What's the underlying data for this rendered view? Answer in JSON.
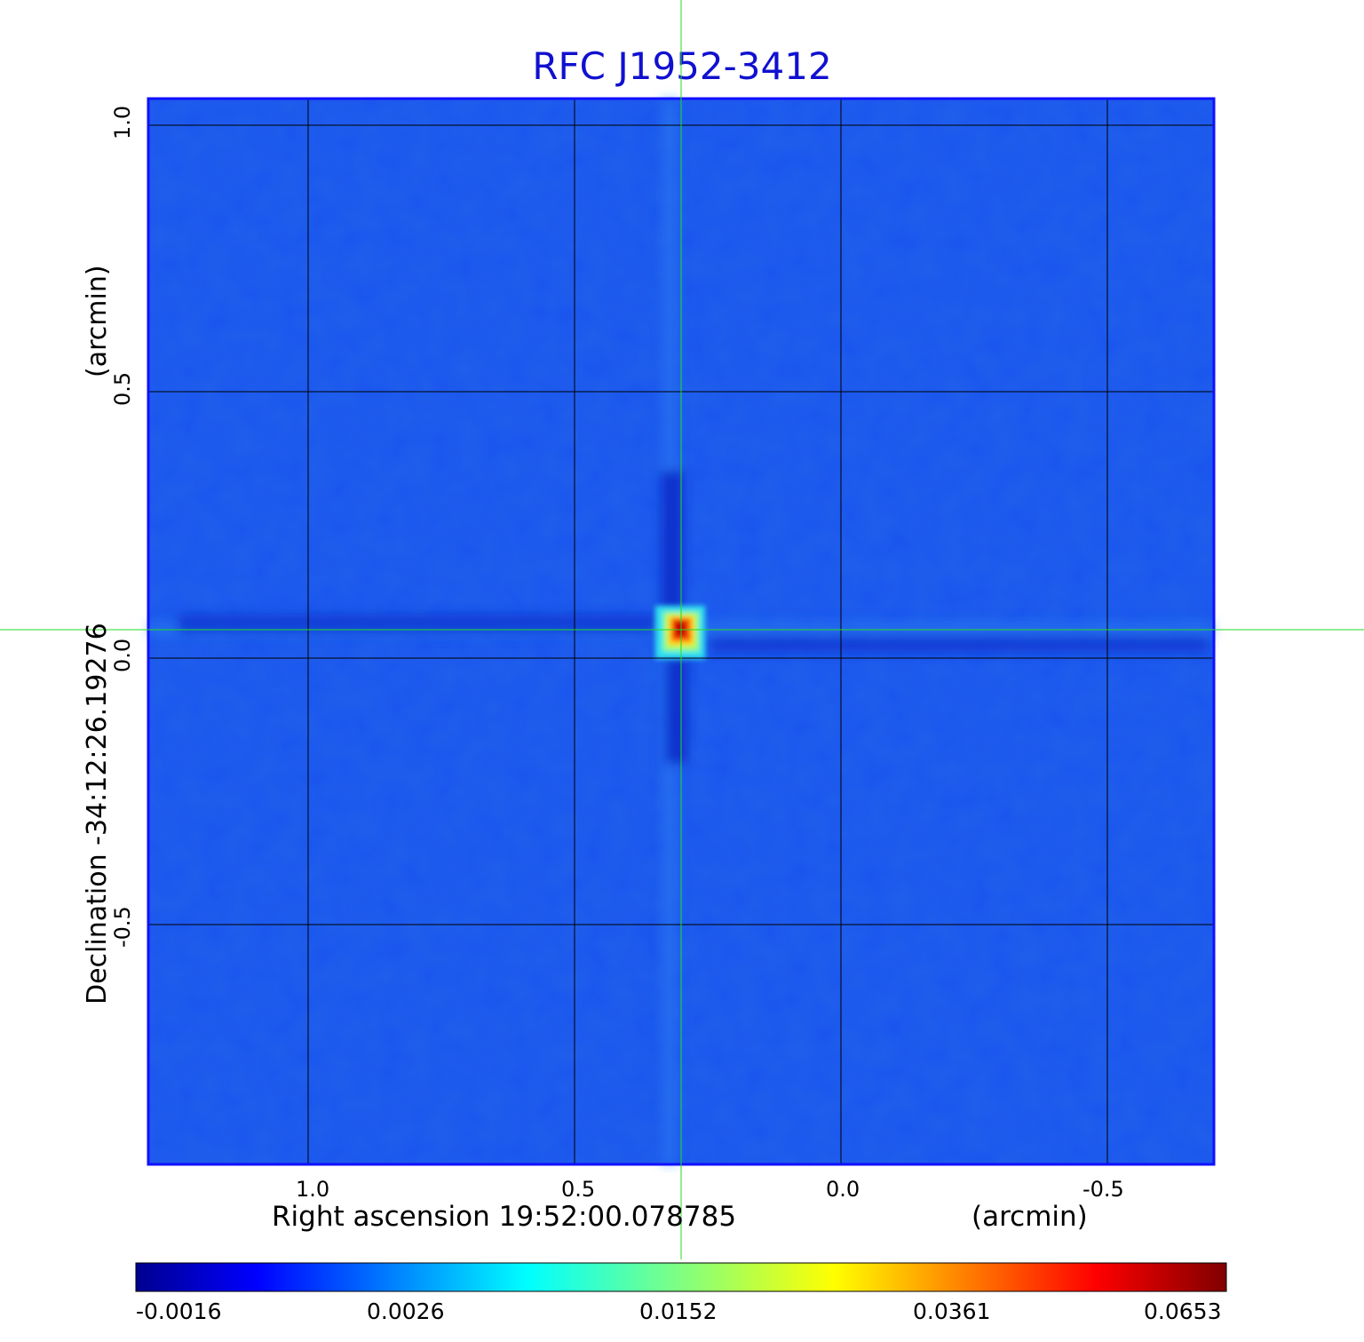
{
  "chart_data": {
    "type": "heatmap",
    "title": "RFC J1952-3412",
    "xlabel": "Right ascension  19:52:00.078785",
    "xunit": "(arcmin)",
    "ylabel": "Declination  -34:12:26.19276",
    "yunit": "(arcmin)",
    "x_ticks": [
      1.0,
      0.5,
      0.0,
      -0.5
    ],
    "x_tick_labels": [
      "1.0",
      "0.5",
      "0.0",
      "-0.5"
    ],
    "y_ticks": [
      1.0,
      0.5,
      0.0,
      -0.5
    ],
    "y_tick_labels": [
      "1.0",
      "0.5",
      "0.0",
      "-0.5"
    ],
    "xlim": [
      1.3,
      -0.7
    ],
    "ylim": [
      -0.95,
      1.05
    ],
    "grid": true,
    "crosshair": [
      0.3,
      0.06
    ],
    "colorbar": {
      "colormap": "jet",
      "tick_labels": [
        "-0.0016",
        "0.0026",
        "0.0152",
        "0.0361",
        "0.0653"
      ]
    },
    "source": {
      "x": 0.3,
      "y": 0.06,
      "peak": 0.0653
    }
  },
  "colors": {
    "title": "#1010d0",
    "background": "#1a55ee",
    "crosshair": "#22dd22",
    "grid": "#000000"
  }
}
